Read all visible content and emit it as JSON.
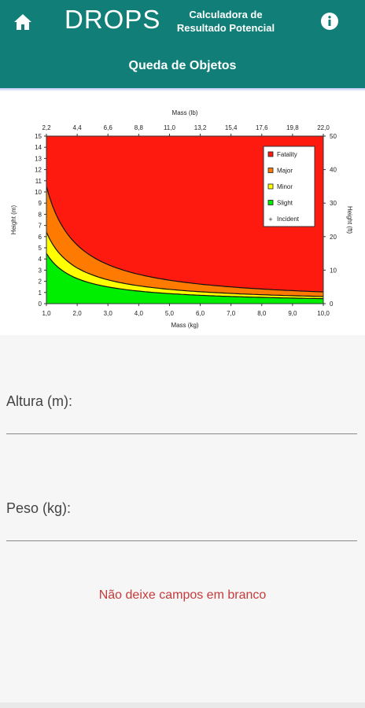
{
  "header": {
    "brand": "DROPS",
    "calc_title": "Calculadora de Resultado Potencial",
    "subtitle": "Queda de Objetos",
    "home_icon": "home-icon",
    "info_icon": "info-icon",
    "color": "#117f78"
  },
  "chart_data": {
    "type": "area",
    "xlabel": "Mass (kg)",
    "x2label": "Mass (lb)",
    "ylabel": "Height (m)",
    "y2label": "Height (ft)",
    "xlim": [
      1,
      10
    ],
    "ylim": [
      0,
      15
    ],
    "x_ticks": [
      "1,0",
      "2,0",
      "3,0",
      "4,0",
      "5,0",
      "6,0",
      "7,0",
      "8,0",
      "9,0",
      "10,0"
    ],
    "x2_ticks": [
      "2,2",
      "4,4",
      "6,6",
      "8,8",
      "11,0",
      "13,2",
      "15,4",
      "17,6",
      "19,8",
      "22,0"
    ],
    "y_ticks": [
      "0",
      "1",
      "2",
      "3",
      "4",
      "5",
      "6",
      "7",
      "8",
      "9",
      "10",
      "11",
      "12",
      "13",
      "14",
      "15"
    ],
    "y2_ticks": [
      "0",
      "10",
      "20",
      "30",
      "40",
      "50"
    ],
    "series": [
      {
        "name": "Fatality",
        "color": "#ff1a10",
        "x": [
          1,
          2,
          3,
          4,
          5,
          6,
          7,
          8,
          9,
          10
        ],
        "y": [
          15,
          15,
          15,
          15,
          15,
          15,
          15,
          15,
          15,
          15
        ]
      },
      {
        "name": "Major",
        "color": "#ff7a00",
        "x": [
          1,
          2,
          3,
          4,
          5,
          6,
          7,
          8,
          9,
          10
        ],
        "y": [
          10.5,
          5.25,
          3.5,
          2.63,
          2.1,
          1.75,
          1.5,
          1.31,
          1.17,
          1.05
        ]
      },
      {
        "name": "Minor",
        "color": "#ffff00",
        "x": [
          1,
          2,
          3,
          4,
          5,
          6,
          7,
          8,
          9,
          10
        ],
        "y": [
          6.4,
          3.2,
          2.13,
          1.6,
          1.28,
          1.07,
          0.91,
          0.8,
          0.71,
          0.64
        ]
      },
      {
        "name": "Slight",
        "color": "#00ee00",
        "x": [
          1,
          2,
          3,
          4,
          5,
          6,
          7,
          8,
          9,
          10
        ],
        "y": [
          4.5,
          2.25,
          1.5,
          1.13,
          0.9,
          0.75,
          0.64,
          0.56,
          0.5,
          0.45
        ]
      }
    ],
    "legend": [
      "Fatality",
      "Major",
      "Minor",
      "Slight",
      "Incident"
    ],
    "legend_placement": "top-right"
  },
  "form": {
    "altura_label": "Altura (m):",
    "altura_value": "",
    "peso_label": "Peso (kg):",
    "peso_value": "",
    "error": "Não deixe campos em branco"
  }
}
